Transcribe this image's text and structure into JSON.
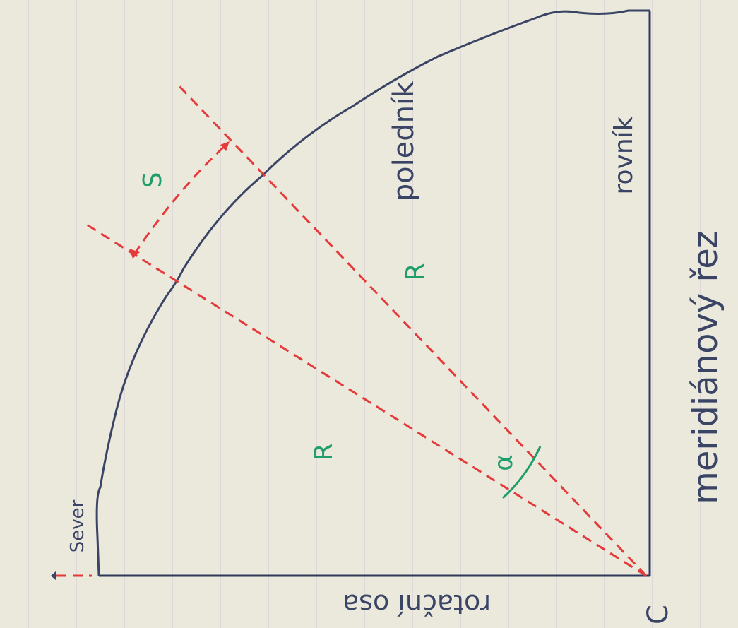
{
  "labels": {
    "meridian": "poledník",
    "equator": "rovník",
    "section": "meridiánový řez",
    "axis": "rotační osa",
    "north": "Sever",
    "arc": "S",
    "radius_1": "R",
    "radius_2": "R",
    "angle": "α",
    "center": "C"
  }
}
